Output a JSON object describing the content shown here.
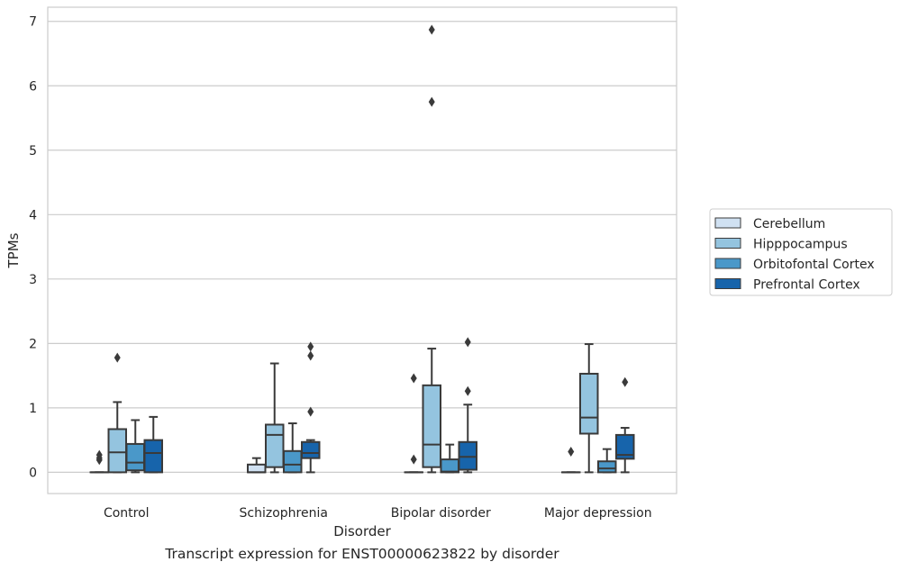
{
  "chart_data": {
    "type": "box",
    "xlabel": "Disorder",
    "ylabel": "TPMs",
    "caption": "Transcript expression for ENST00000623822 by disorder",
    "ylim": [
      -0.33,
      7.22
    ],
    "yticks": [
      0,
      1,
      2,
      3,
      4,
      5,
      6,
      7
    ],
    "grid": "horizontal",
    "legend_position": "right",
    "categories": [
      "Control",
      "Schizophrenia",
      "Bipolar disorder",
      "Major depression"
    ],
    "series": [
      {
        "name": "Cerebellum",
        "color": "#d0e1f2",
        "boxes": [
          {
            "whislo": 0,
            "q1": 0,
            "med": 0,
            "q3": 0,
            "whishi": 0,
            "fliers": [
              0.19,
              0.22,
              0.27
            ]
          },
          {
            "whislo": 0,
            "q1": 0,
            "med": 0,
            "q3": 0.12,
            "whishi": 0.22,
            "fliers": []
          },
          {
            "whislo": 0,
            "q1": 0,
            "med": 0,
            "q3": 0,
            "whishi": 0,
            "fliers": [
              0.2,
              1.46
            ]
          },
          {
            "whislo": 0,
            "q1": 0,
            "med": 0,
            "q3": 0,
            "whishi": 0,
            "fliers": [
              0.32
            ]
          }
        ]
      },
      {
        "name": "Hipppocampus",
        "color": "#94c4df",
        "boxes": [
          {
            "whislo": 0,
            "q1": 0,
            "med": 0.31,
            "q3": 0.67,
            "whishi": 1.09,
            "fliers": [
              1.78
            ]
          },
          {
            "whislo": 0,
            "q1": 0.08,
            "med": 0.58,
            "q3": 0.74,
            "whishi": 1.69,
            "fliers": []
          },
          {
            "whislo": 0,
            "q1": 0.08,
            "med": 0.43,
            "q3": 1.35,
            "whishi": 1.92,
            "fliers": [
              5.75,
              6.87
            ]
          },
          {
            "whislo": 0,
            "q1": 0.6,
            "med": 0.85,
            "q3": 1.53,
            "whishi": 1.99,
            "fliers": []
          }
        ]
      },
      {
        "name": "Orbitofontal Cortex",
        "color": "#4a98c9",
        "boxes": [
          {
            "whislo": 0,
            "q1": 0.03,
            "med": 0.15,
            "q3": 0.44,
            "whishi": 0.81,
            "fliers": []
          },
          {
            "whislo": 0,
            "q1": 0,
            "med": 0.12,
            "q3": 0.33,
            "whishi": 0.76,
            "fliers": []
          },
          {
            "whislo": 0,
            "q1": 0,
            "med": 0.01,
            "q3": 0.2,
            "whishi": 0.43,
            "fliers": []
          },
          {
            "whislo": 0,
            "q1": 0,
            "med": 0.06,
            "q3": 0.17,
            "whishi": 0.36,
            "fliers": []
          }
        ]
      },
      {
        "name": "Prefrontal Cortex",
        "color": "#1764ab",
        "boxes": [
          {
            "whislo": 0,
            "q1": 0,
            "med": 0.3,
            "q3": 0.5,
            "whishi": 0.86,
            "fliers": []
          },
          {
            "whislo": 0,
            "q1": 0.22,
            "med": 0.3,
            "q3": 0.47,
            "whishi": 0.5,
            "fliers": [
              0.94,
              1.81,
              1.95
            ]
          },
          {
            "whislo": 0,
            "q1": 0.04,
            "med": 0.24,
            "q3": 0.47,
            "whishi": 1.05,
            "fliers": [
              1.26,
              2.02
            ]
          },
          {
            "whislo": 0,
            "q1": 0.21,
            "med": 0.27,
            "q3": 0.58,
            "whishi": 0.69,
            "fliers": [
              1.4
            ]
          }
        ]
      }
    ]
  }
}
